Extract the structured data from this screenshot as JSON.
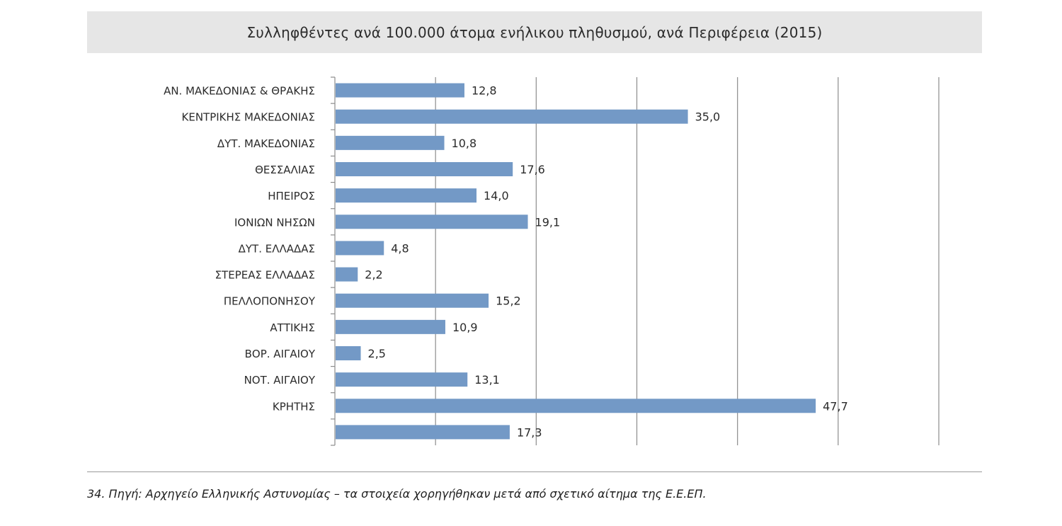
{
  "header": {
    "title": "Συλληφθέντες ανά 100.000 άτομα ενήλικου πληθυσμού, ανά Περιφέρεια (2015)"
  },
  "footer": {
    "note": "34. Πηγή: Αρχηγείο Ελληνικής Αστυνομίας – τα στοιχεία χορηγήθηκαν μετά από σχετικό αίτημα της Ε.Ε.ΕΠ."
  },
  "colors": {
    "bar": "#7399c6",
    "grid": "#8c8c8c",
    "text": "#2b2b2b"
  },
  "chart_data": {
    "type": "bar",
    "orientation": "horizontal",
    "title": "Συλληφθέντες ανά 100.000 άτομα ενήλικου πληθυσμού, ανά Περιφέρεια (2015)",
    "categories": [
      "ΑΝ. ΜΑΚΕΔΟΝΙΑΣ & ΘΡΑΚΗΣ",
      "ΚΕΝΤΡΙΚΗΣ ΜΑΚΕΔΟΝΙΑΣ",
      "ΔΥΤ. ΜΑΚΕΔΟΝΙΑΣ",
      "ΘΕΣΣΑΛΙΑΣ",
      "ΗΠΕΙΡΟΣ",
      "ΙΟΝΙΩΝ ΝΗΣΩΝ",
      "ΔΥΤ. ΕΛΛΑΔΑΣ",
      "ΣΤΕΡΕΑΣ ΕΛΛΑΔΑΣ",
      "ΠΕΛΛΟΠΟΝΗΣΟΥ",
      "ΑΤΤΙΚΗΣ",
      "ΒΟΡ. ΑΙΓΑΙΟΥ",
      "ΝΟΤ. ΑΙΓΑΙΟΥ",
      "ΚΡΗΤΗΣ",
      ""
    ],
    "values": [
      12.8,
      35.0,
      10.8,
      17.6,
      14.0,
      19.1,
      4.8,
      2.2,
      15.2,
      10.9,
      2.5,
      13.1,
      47.7,
      17.3
    ],
    "data_labels": [
      "12,8",
      "35,0",
      "10,8",
      "17,6",
      "14,0",
      "19,1",
      "4,8",
      "2,2",
      "15,2",
      "10,9",
      "2,5",
      "13,1",
      "47,7",
      "17,3"
    ],
    "xlim": [
      0,
      60
    ],
    "x_gridlines": [
      10,
      20,
      30,
      40,
      50,
      60
    ],
    "grid": true,
    "legend": "none"
  }
}
